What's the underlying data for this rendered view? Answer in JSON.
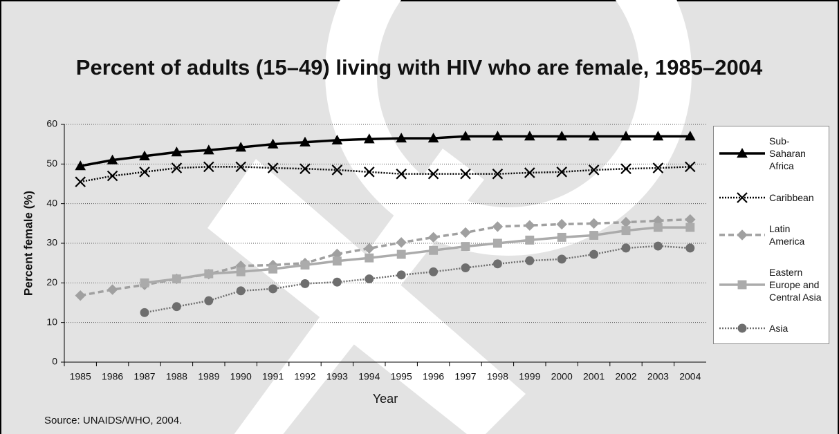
{
  "chart_data": {
    "type": "line",
    "title": "Percent of adults (15–49) living with HIV who are female, 1985–2004",
    "y_label": "Percent female (%)",
    "x_label": "Year",
    "source": "Source: UNAIDS/WHO, 2004.",
    "categories": [
      "1985",
      "1986",
      "1987",
      "1988",
      "1989",
      "1990",
      "1991",
      "1992",
      "1993",
      "1994",
      "1995",
      "1996",
      "1997",
      "1998",
      "1999",
      "2000",
      "2001",
      "2002",
      "2003",
      "2004"
    ],
    "ylim": [
      0,
      60
    ],
    "yticks": [
      0,
      10,
      20,
      30,
      40,
      50,
      60
    ],
    "grid": true,
    "legend": "right",
    "series": [
      {
        "name": "Sub-Saharan Africa",
        "color": "#000000",
        "dash": "solid",
        "marker": "triangle",
        "values": [
          49.5,
          51,
          52,
          53,
          53.5,
          54.2,
          55,
          55.5,
          56,
          56.3,
          56.5,
          56.5,
          57,
          57,
          57,
          57,
          57,
          57,
          57,
          57
        ]
      },
      {
        "name": "Caribbean",
        "color": "#000000",
        "dash": "dotted",
        "marker": "x",
        "values": [
          45.5,
          47,
          48,
          49,
          49.3,
          49.3,
          49,
          48.8,
          48.5,
          48,
          47.5,
          47.5,
          47.5,
          47.5,
          47.8,
          48,
          48.5,
          48.8,
          49,
          49.3
        ]
      },
      {
        "name": "Latin America",
        "color": "#a0a0a0",
        "dash": "dashed",
        "marker": "diamond",
        "values": [
          16.8,
          18.3,
          19.5,
          21,
          22.2,
          24.3,
          24.5,
          25,
          27.3,
          28.7,
          30.2,
          31.5,
          32.7,
          34.2,
          34.5,
          34.8,
          35,
          35.3,
          35.7,
          36
        ]
      },
      {
        "name": "Eastern Europe and Central Asia",
        "color": "#ababab",
        "dash": "solid",
        "marker": "square",
        "values": [
          null,
          null,
          20,
          21,
          22.3,
          22.8,
          23.5,
          24.5,
          25.5,
          26.3,
          27.2,
          28.2,
          29.2,
          30,
          30.8,
          31.5,
          32,
          33.2,
          34,
          34
        ]
      },
      {
        "name": "Asia",
        "color": "#6e6e6e",
        "dash": "dotted",
        "marker": "circle",
        "values": [
          null,
          null,
          12.5,
          14,
          15.5,
          18,
          18.5,
          19.8,
          20.2,
          21,
          22,
          22.8,
          23.8,
          24.8,
          25.6,
          26,
          27.2,
          28.8,
          29.3,
          28.8
        ]
      }
    ]
  }
}
